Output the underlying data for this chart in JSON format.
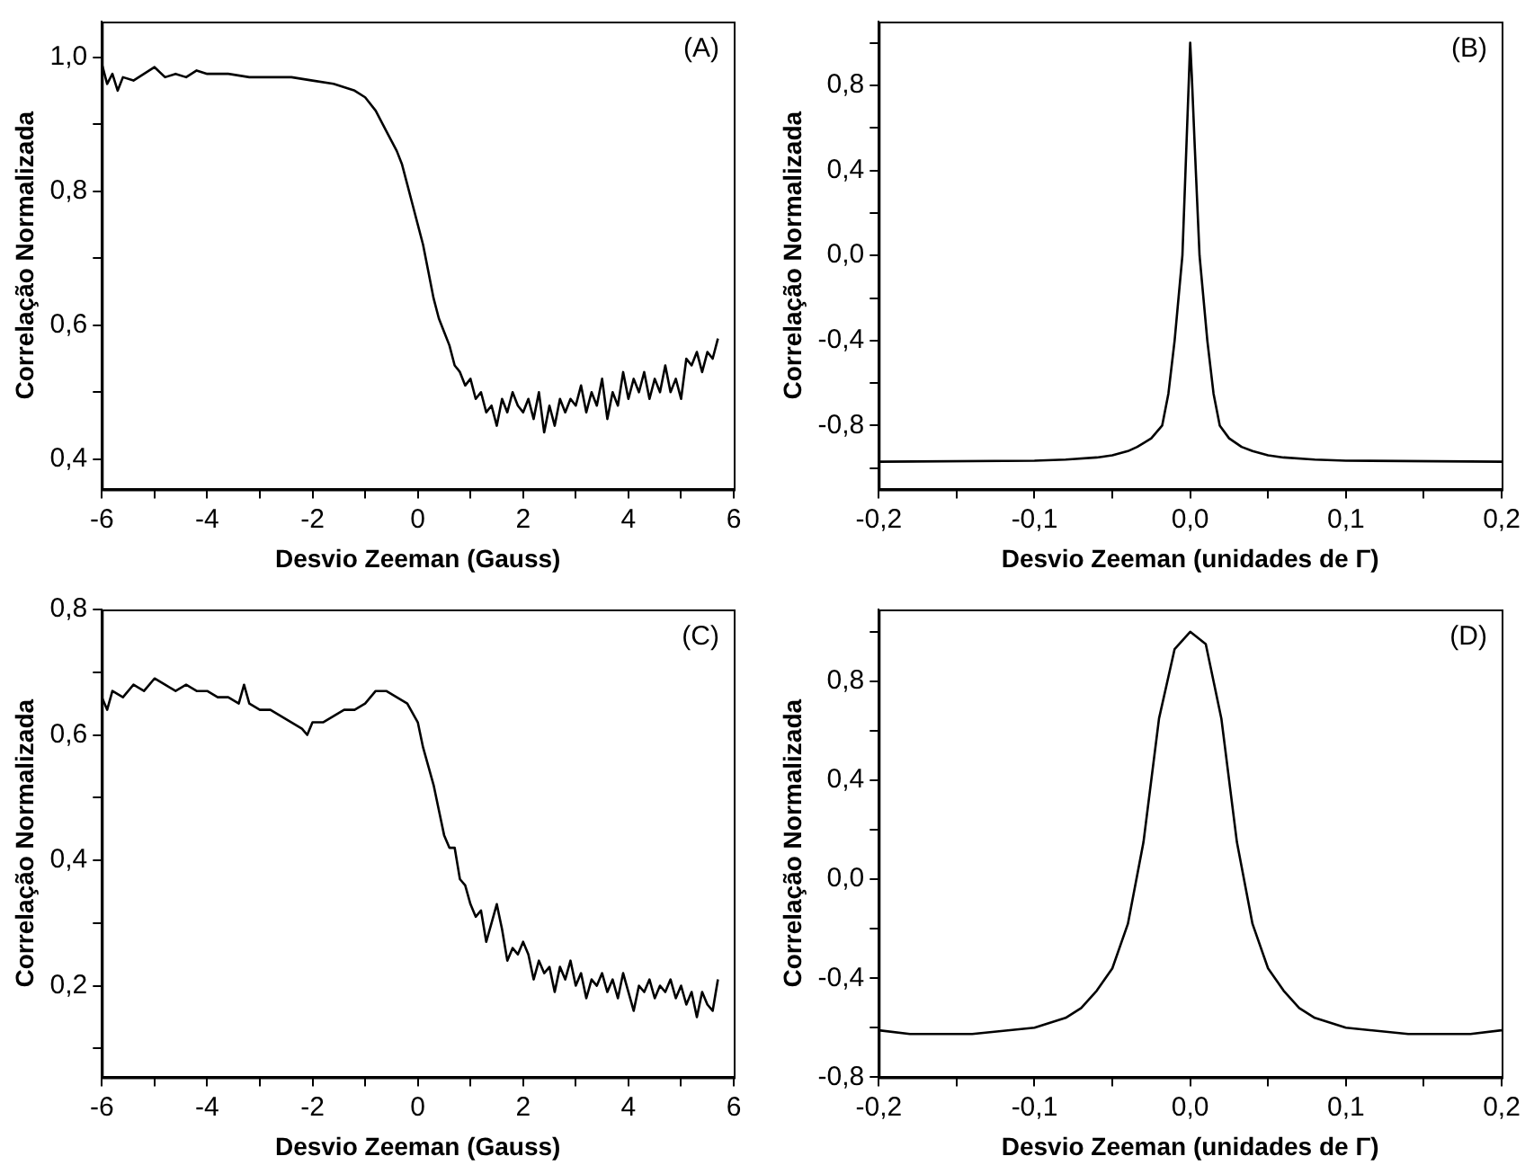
{
  "chart_data": [
    {
      "type": "line",
      "xlabel": "Desvio Zeeman (Gauss)",
      "ylabel": "Correlação Normalizada",
      "annotations": [
        "(A)"
      ],
      "marker": "none",
      "line_style": "solid",
      "xlim": [
        -6,
        6
      ],
      "ylim": [
        0.355,
        1.053
      ],
      "xticks": [
        -6,
        {
          "value": -5,
          "label": null
        },
        -4,
        {
          "value": -3,
          "label": null
        },
        -2,
        {
          "value": -1,
          "label": null
        },
        0,
        {
          "value": 1,
          "label": null
        },
        2,
        {
          "value": 3,
          "label": null
        },
        4,
        {
          "value": 5,
          "label": null
        },
        6
      ],
      "yticks": [
        {
          "value": 0.4,
          "label": "0,4"
        },
        {
          "value": 0.5,
          "label": null
        },
        {
          "value": 0.6,
          "label": "0,6"
        },
        {
          "value": 0.7,
          "label": null
        },
        {
          "value": 0.8,
          "label": "0,8"
        },
        {
          "value": 0.9,
          "label": null
        },
        {
          "value": 1.0,
          "label": "1,0"
        }
      ],
      "x": [
        -6,
        -5.9,
        -5.8,
        -5.7,
        -5.6,
        -5.4,
        -5.2,
        -5.0,
        -4.8,
        -4.6,
        -4.4,
        -4.2,
        -4.0,
        -3.6,
        -3.2,
        -2.8,
        -2.4,
        -2.0,
        -1.6,
        -1.2,
        -1.0,
        -0.8,
        -0.6,
        -0.4,
        -0.3,
        -0.2,
        -0.1,
        0,
        0.1,
        0.2,
        0.3,
        0.4,
        0.5,
        0.6,
        0.7,
        0.8,
        0.9,
        1.0,
        1.1,
        1.2,
        1.3,
        1.4,
        1.5,
        1.6,
        1.7,
        1.8,
        1.9,
        2.0,
        2.1,
        2.2,
        2.3,
        2.4,
        2.5,
        2.6,
        2.7,
        2.8,
        2.9,
        3.0,
        3.1,
        3.2,
        3.3,
        3.4,
        3.5,
        3.6,
        3.7,
        3.8,
        3.9,
        4.0,
        4.1,
        4.2,
        4.3,
        4.4,
        4.5,
        4.6,
        4.7,
        4.8,
        4.9,
        5.0,
        5.1,
        5.2,
        5.3,
        5.4,
        5.5,
        5.6,
        5.7
      ],
      "series": [
        {
          "color": "#000000",
          "values": [
            0.99,
            0.96,
            0.975,
            0.95,
            0.97,
            0.965,
            0.975,
            0.985,
            0.97,
            0.975,
            0.97,
            0.98,
            0.975,
            0.975,
            0.97,
            0.97,
            0.97,
            0.965,
            0.96,
            0.95,
            0.94,
            0.92,
            0.89,
            0.86,
            0.84,
            0.81,
            0.78,
            0.75,
            0.72,
            0.68,
            0.64,
            0.61,
            0.59,
            0.57,
            0.54,
            0.53,
            0.51,
            0.52,
            0.49,
            0.5,
            0.47,
            0.48,
            0.45,
            0.49,
            0.47,
            0.5,
            0.48,
            0.47,
            0.49,
            0.46,
            0.5,
            0.44,
            0.48,
            0.45,
            0.49,
            0.47,
            0.49,
            0.48,
            0.51,
            0.47,
            0.5,
            0.48,
            0.52,
            0.46,
            0.5,
            0.48,
            0.53,
            0.49,
            0.52,
            0.5,
            0.53,
            0.49,
            0.52,
            0.5,
            0.54,
            0.5,
            0.52,
            0.49,
            0.55,
            0.54,
            0.56,
            0.53,
            0.56,
            0.55,
            0.58
          ]
        }
      ]
    },
    {
      "type": "line",
      "xlabel": "Desvio Zeeman (unidades de Γ)",
      "ylabel": "Correlação Normalizada",
      "annotations": [
        "(B)"
      ],
      "marker": "none",
      "line_style": "solid",
      "xlim": [
        -0.2,
        0.2
      ],
      "ylim": [
        -1.1,
        1.1
      ],
      "xticks": [
        {
          "value": -0.2,
          "label": "-0,2"
        },
        {
          "value": -0.15,
          "label": null
        },
        {
          "value": -0.1,
          "label": "-0,1"
        },
        {
          "value": -0.05,
          "label": null
        },
        {
          "value": 0,
          "label": "0,0"
        },
        {
          "value": 0.05,
          "label": null
        },
        {
          "value": 0.1,
          "label": "0,1"
        },
        {
          "value": 0.15,
          "label": null
        },
        {
          "value": 0.2,
          "label": "0,2"
        }
      ],
      "yticks": [
        {
          "value": -1.0,
          "label": null
        },
        {
          "value": -0.8,
          "label": "-0,8"
        },
        {
          "value": -0.6,
          "label": null
        },
        {
          "value": -0.4,
          "label": "-0,4"
        },
        {
          "value": -0.2,
          "label": null
        },
        {
          "value": 0,
          "label": "0,0"
        },
        {
          "value": 0.2,
          "label": null
        },
        {
          "value": 0.4,
          "label": "0,4"
        },
        {
          "value": 0.6,
          "label": null
        },
        {
          "value": 0.8,
          "label": "0,8"
        },
        {
          "value": 1.0,
          "label": null
        }
      ],
      "x": [
        -0.2,
        -0.1,
        -0.08,
        -0.06,
        -0.05,
        -0.04,
        -0.034,
        -0.025,
        -0.018,
        -0.014,
        -0.01,
        -0.005,
        -0.003,
        -0.001,
        0,
        0.001,
        0.003,
        0.006,
        0.011,
        0.015,
        0.019,
        0.025,
        0.033,
        0.04,
        0.05,
        0.06,
        0.08,
        0.1,
        0.2
      ],
      "series": [
        {
          "color": "#000000",
          "values": [
            -0.97,
            -0.965,
            -0.96,
            -0.95,
            -0.94,
            -0.92,
            -0.9,
            -0.86,
            -0.8,
            -0.65,
            -0.4,
            0,
            0.4,
            0.8,
            1.0,
            0.85,
            0.5,
            0,
            -0.4,
            -0.65,
            -0.8,
            -0.86,
            -0.9,
            -0.92,
            -0.94,
            -0.95,
            -0.96,
            -0.965,
            -0.97
          ]
        }
      ]
    },
    {
      "type": "line",
      "xlabel": "Desvio Zeeman (Gauss)",
      "ylabel": "Correlação Normalizada",
      "annotations": [
        "(C)"
      ],
      "marker": "none",
      "line_style": "solid",
      "xlim": [
        -6,
        6
      ],
      "ylim": [
        0.054,
        0.8
      ],
      "xticks": [
        -6,
        {
          "value": -5,
          "label": null
        },
        -4,
        {
          "value": -3,
          "label": null
        },
        -2,
        {
          "value": -1,
          "label": null
        },
        0,
        {
          "value": 1,
          "label": null
        },
        2,
        {
          "value": 3,
          "label": null
        },
        4,
        {
          "value": 5,
          "label": null
        },
        6
      ],
      "yticks": [
        {
          "value": 0.1,
          "label": null
        },
        {
          "value": 0.2,
          "label": "0,2"
        },
        {
          "value": 0.3,
          "label": null
        },
        {
          "value": 0.4,
          "label": "0,4"
        },
        {
          "value": 0.5,
          "label": null
        },
        {
          "value": 0.6,
          "label": "0,6"
        },
        {
          "value": 0.7,
          "label": null
        },
        {
          "value": 0.8,
          "label": "0,8"
        }
      ],
      "x": [
        -6,
        -5.9,
        -5.8,
        -5.6,
        -5.4,
        -5.2,
        -5.0,
        -4.8,
        -4.6,
        -4.4,
        -4.2,
        -4.0,
        -3.8,
        -3.6,
        -3.4,
        -3.3,
        -3.2,
        -3.0,
        -2.8,
        -2.6,
        -2.4,
        -2.2,
        -2.1,
        -2.0,
        -1.8,
        -1.6,
        -1.4,
        -1.2,
        -1.0,
        -0.8,
        -0.6,
        -0.4,
        -0.2,
        0,
        0.1,
        0.2,
        0.3,
        0.4,
        0.5,
        0.6,
        0.7,
        0.8,
        0.9,
        1.0,
        1.1,
        1.2,
        1.3,
        1.4,
        1.5,
        1.6,
        1.7,
        1.8,
        1.9,
        2.0,
        2.1,
        2.2,
        2.3,
        2.4,
        2.5,
        2.6,
        2.7,
        2.8,
        2.9,
        3.0,
        3.1,
        3.2,
        3.3,
        3.4,
        3.5,
        3.6,
        3.7,
        3.8,
        3.9,
        4.0,
        4.1,
        4.2,
        4.3,
        4.4,
        4.5,
        4.6,
        4.7,
        4.8,
        4.9,
        5.0,
        5.1,
        5.2,
        5.3,
        5.4,
        5.5,
        5.6,
        5.7
      ],
      "series": [
        {
          "color": "#000000",
          "values": [
            0.66,
            0.64,
            0.67,
            0.66,
            0.68,
            0.67,
            0.69,
            0.68,
            0.67,
            0.68,
            0.67,
            0.67,
            0.66,
            0.66,
            0.65,
            0.68,
            0.65,
            0.64,
            0.64,
            0.63,
            0.62,
            0.61,
            0.6,
            0.62,
            0.62,
            0.63,
            0.64,
            0.64,
            0.65,
            0.67,
            0.67,
            0.66,
            0.65,
            0.62,
            0.58,
            0.55,
            0.52,
            0.48,
            0.44,
            0.42,
            0.42,
            0.37,
            0.36,
            0.33,
            0.31,
            0.32,
            0.27,
            0.3,
            0.33,
            0.29,
            0.24,
            0.26,
            0.25,
            0.27,
            0.25,
            0.21,
            0.24,
            0.22,
            0.23,
            0.19,
            0.23,
            0.21,
            0.24,
            0.2,
            0.22,
            0.18,
            0.21,
            0.2,
            0.22,
            0.19,
            0.21,
            0.18,
            0.22,
            0.19,
            0.16,
            0.2,
            0.19,
            0.21,
            0.18,
            0.2,
            0.19,
            0.21,
            0.18,
            0.2,
            0.17,
            0.19,
            0.15,
            0.19,
            0.17,
            0.16,
            0.21
          ]
        }
      ]
    },
    {
      "type": "line",
      "xlabel": "Desvio Zeeman (unidades de Γ)",
      "ylabel": "Correlação Normalizada",
      "annotations": [
        "(D)"
      ],
      "marker": "none",
      "line_style": "solid",
      "xlim": [
        -0.2,
        0.2
      ],
      "ylim": [
        -0.8,
        1.09
      ],
      "xticks": [
        {
          "value": -0.2,
          "label": "-0,2"
        },
        {
          "value": -0.15,
          "label": null
        },
        {
          "value": -0.1,
          "label": "-0,1"
        },
        {
          "value": -0.05,
          "label": null
        },
        {
          "value": 0,
          "label": "0,0"
        },
        {
          "value": 0.05,
          "label": null
        },
        {
          "value": 0.1,
          "label": "0,1"
        },
        {
          "value": 0.15,
          "label": null
        },
        {
          "value": 0.2,
          "label": "0,2"
        }
      ],
      "yticks": [
        {
          "value": -0.8,
          "label": "-0,8"
        },
        {
          "value": -0.6,
          "label": null
        },
        {
          "value": -0.4,
          "label": "-0,4"
        },
        {
          "value": -0.2,
          "label": null
        },
        {
          "value": 0,
          "label": "0,0"
        },
        {
          "value": 0.2,
          "label": null
        },
        {
          "value": 0.4,
          "label": "0,4"
        },
        {
          "value": 0.6,
          "label": null
        },
        {
          "value": 0.8,
          "label": "0,8"
        },
        {
          "value": 1.0,
          "label": null
        }
      ],
      "x": [
        -0.2,
        -0.18,
        -0.14,
        -0.1,
        -0.08,
        -0.07,
        -0.06,
        -0.05,
        -0.04,
        -0.03,
        -0.02,
        -0.01,
        0,
        0.01,
        0.02,
        0.03,
        0.04,
        0.05,
        0.06,
        0.07,
        0.08,
        0.1,
        0.14,
        0.18,
        0.2
      ],
      "series": [
        {
          "color": "#000000",
          "values": [
            -0.61,
            -0.625,
            -0.625,
            -0.6,
            -0.56,
            -0.52,
            -0.45,
            -0.36,
            -0.18,
            0.15,
            0.65,
            0.93,
            1.0,
            0.95,
            0.65,
            0.15,
            -0.18,
            -0.36,
            -0.45,
            -0.52,
            -0.56,
            -0.6,
            -0.625,
            -0.625,
            -0.61
          ]
        }
      ]
    }
  ]
}
